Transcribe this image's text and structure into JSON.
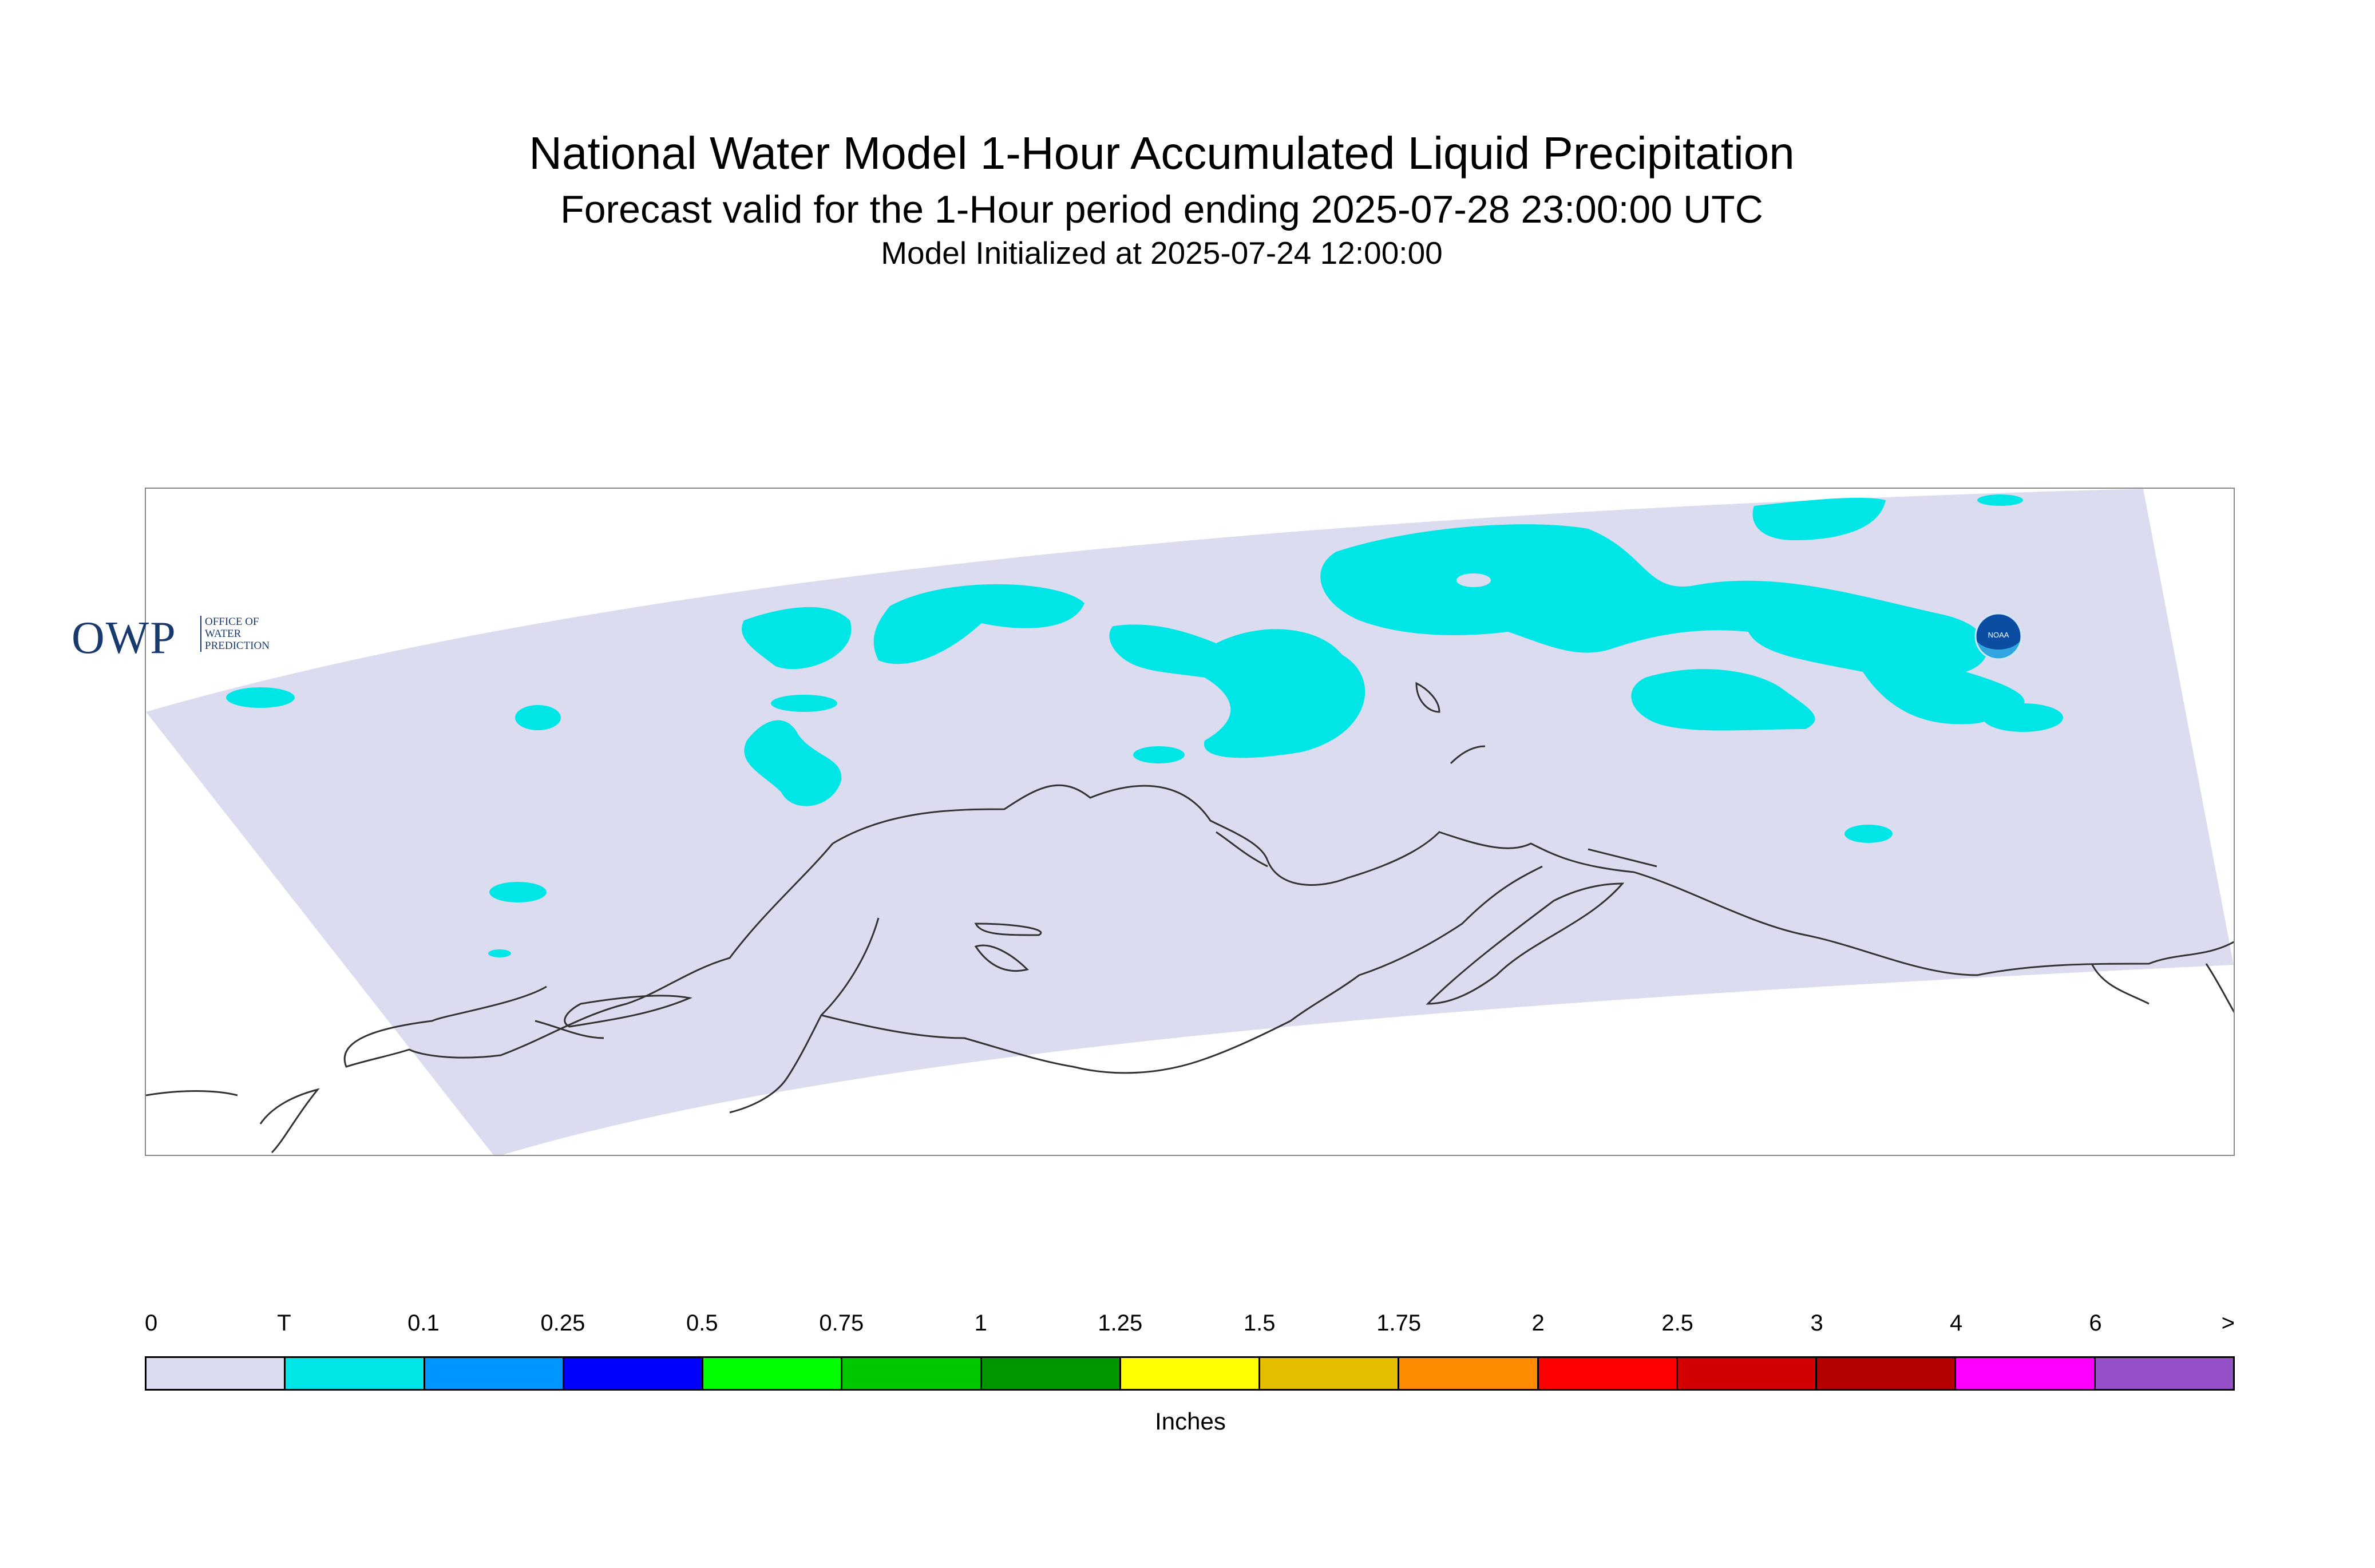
{
  "titles": {
    "main": "National Water Model 1-Hour Accumulated Liquid Precipitation",
    "sub": "Forecast valid for the 1-Hour period ending 2025-07-28 23:00:00 UTC",
    "init": "Model Initialized at 2025-07-24 12:00:00"
  },
  "logos": {
    "owp_big": "OWP",
    "owp_small": "OFFICE OF WATER PREDICTION",
    "noaa": "NOAA"
  },
  "legend": {
    "labels": [
      "0",
      "T",
      "0.1",
      "0.25",
      "0.5",
      "0.75",
      "1",
      "1.25",
      "1.5",
      "1.75",
      "2",
      "2.5",
      "3",
      "4",
      "6",
      ">"
    ],
    "colors": [
      "#dcdcf0",
      "#00e6e6",
      "#0096ff",
      "#0000ff",
      "#00ff00",
      "#00c800",
      "#009600",
      "#ffff00",
      "#e6be00",
      "#ff8c00",
      "#ff0000",
      "#d20000",
      "#b40000",
      "#ff00ff",
      "#9650c8"
    ],
    "units": "Inches"
  },
  "map": {
    "domain_fill": "#dcdcf0",
    "precip_color": "#00e6e6",
    "coast_color": "#333333"
  }
}
